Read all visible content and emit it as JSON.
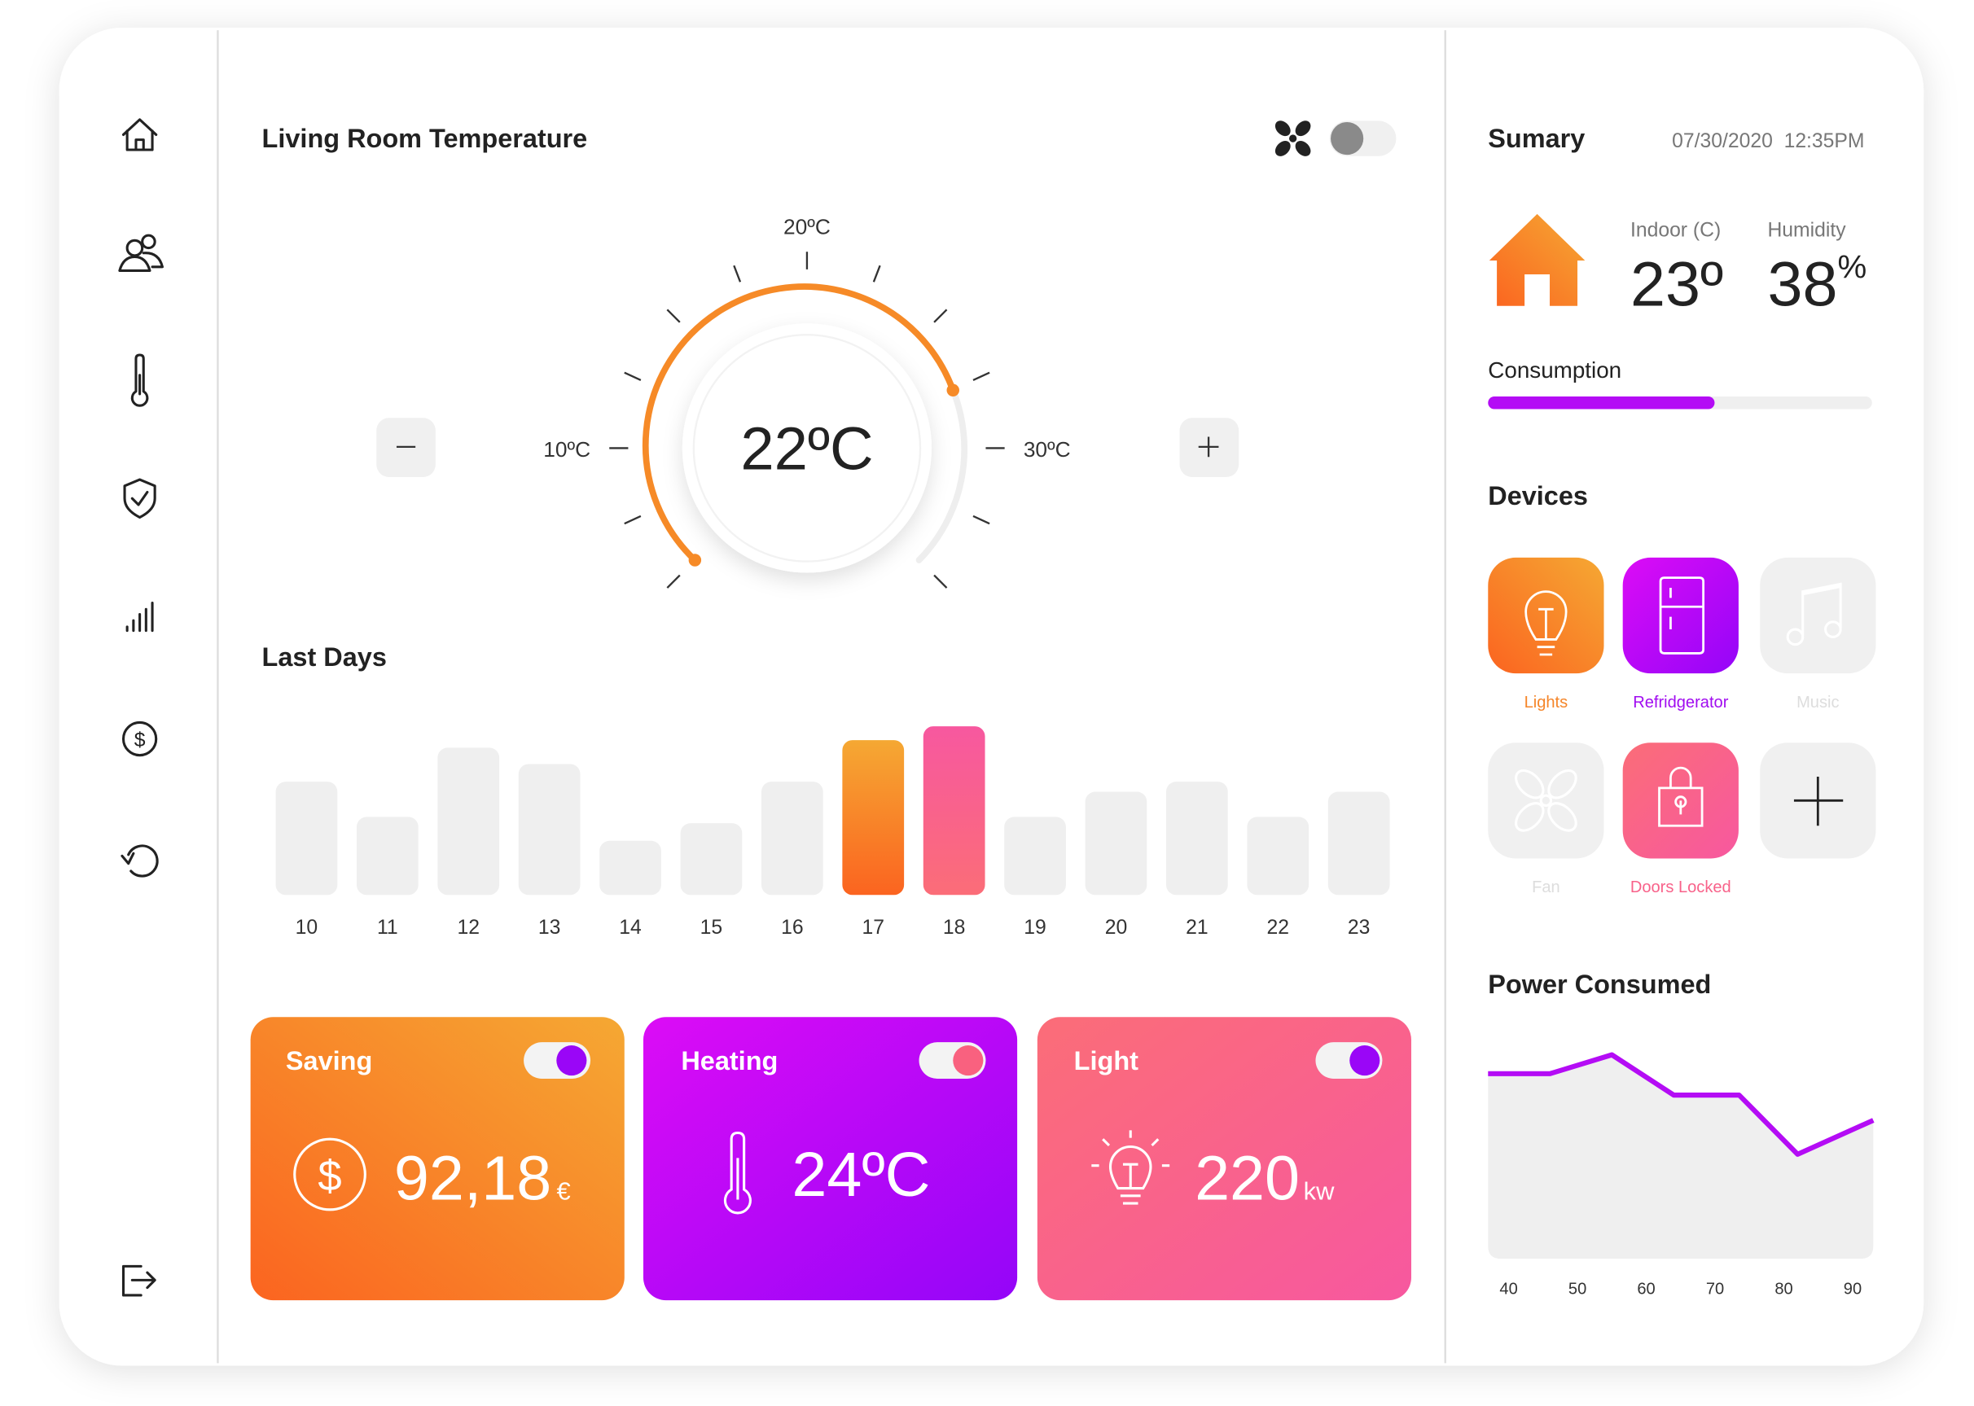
{
  "header": {
    "title": "Living Room Temperature"
  },
  "thermostat": {
    "current": "22ºC",
    "min_label": "10ºC",
    "mid_label": "20ºC",
    "max_label": "30ºC"
  },
  "last_days": {
    "title": "Last Days",
    "chart_data": {
      "type": "bar",
      "categories": [
        "10",
        "11",
        "12",
        "13",
        "14",
        "15",
        "16",
        "17",
        "18",
        "19",
        "20",
        "21",
        "22",
        "23"
      ],
      "values": [
        90,
        62,
        117,
        104,
        43,
        57,
        90,
        123,
        134,
        62,
        82,
        90,
        62,
        82
      ],
      "colors": [
        "#efefef",
        "#efefef",
        "#efefef",
        "#efefef",
        "#efefef",
        "#efefef",
        "#efefef",
        "orange",
        "pink",
        "#efefef",
        "#efefef",
        "#efefef",
        "#efefef",
        "#efefef"
      ],
      "ylim": [
        0,
        140
      ]
    }
  },
  "cards": [
    {
      "title": "Saving",
      "value": "92,18",
      "unit": "€"
    },
    {
      "title": "Heating",
      "value": "24ºC"
    },
    {
      "title": "Light",
      "value": "220",
      "unit": "kw"
    }
  ],
  "summary": {
    "title": "Sumary",
    "datetime": "07/30/2020  12:35PM",
    "indoor_label": "Indoor (C)",
    "indoor_value": "23º",
    "humidity_label": "Humidity",
    "humidity_value": "38",
    "humidity_unit": "%",
    "consumption_label": "Consumption",
    "consumption_progress": 59
  },
  "devices": {
    "title": "Devices",
    "items": [
      "Lights",
      "Refridgerator",
      "Music",
      "Fan",
      "Doors Locked"
    ]
  },
  "power": {
    "title": "Power Consumed",
    "chart_data": {
      "type": "area",
      "x": [
        37,
        46,
        55,
        64,
        73.5,
        82,
        93
      ],
      "values": [
        147,
        147,
        162,
        130,
        130,
        83,
        110
      ],
      "color": "#b40cf5",
      "xlim": [
        37,
        93
      ],
      "xticks": [
        40,
        50,
        60,
        70,
        80,
        90
      ],
      "ylim": [
        0,
        180
      ]
    }
  }
}
